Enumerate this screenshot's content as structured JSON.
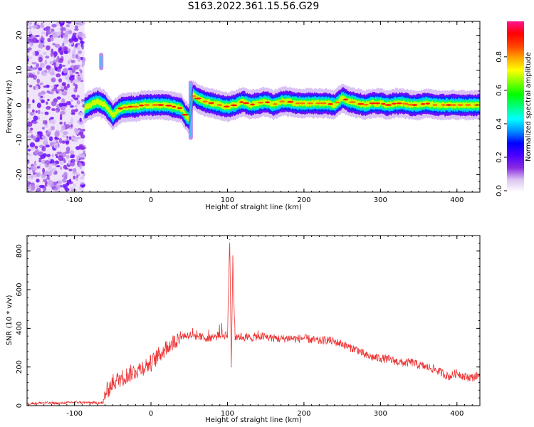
{
  "title": "S163.2022.361.15.56.G29",
  "chart_data": [
    {
      "type": "heatmap",
      "xlabel": "Height of straight line (km)",
      "ylabel": "Frequency (Hz)",
      "xlim": [
        -162,
        430
      ],
      "ylim": [
        -25,
        24
      ],
      "xticks": [
        -100,
        0,
        100,
        200,
        300,
        400
      ],
      "yticks": [
        -20,
        -10,
        0,
        10,
        20
      ],
      "colorbar": {
        "label": "Normalized spectral amplitude",
        "range": [
          0,
          1
        ],
        "ticks": [
          0.0,
          0.2,
          0.4,
          0.6,
          0.8
        ],
        "colors": [
          "#ffffff",
          "#ddc6f2",
          "#8a2be2",
          "#4b00ff",
          "#0000ff",
          "#0090ff",
          "#00ffff",
          "#00ff80",
          "#00ff00",
          "#80ff00",
          "#ffff00",
          "#ffa500",
          "#ff4000",
          "#ff0000",
          "#ff1493"
        ]
      },
      "noise_region_x": [
        -162,
        -87
      ],
      "ridge": {
        "x": [
          -87,
          -80,
          -70,
          -60,
          -50,
          -40,
          -30,
          -20,
          -10,
          0,
          10,
          20,
          30,
          40,
          45,
          50,
          55,
          60,
          70,
          80,
          90,
          100,
          110,
          120,
          130,
          140,
          150,
          160,
          170,
          180,
          190,
          200,
          210,
          220,
          230,
          240,
          250,
          260,
          270,
          280,
          290,
          300,
          310,
          320,
          330,
          340,
          350,
          360,
          370,
          380,
          390,
          400,
          410,
          420,
          430
        ],
        "freq": [
          -1,
          0,
          1,
          0,
          -3,
          -1,
          -0.5,
          -0.5,
          0,
          0,
          0,
          0,
          -0.5,
          -1,
          -3,
          -4,
          3,
          2,
          1,
          0.5,
          0,
          -0.5,
          0,
          1,
          0,
          0.5,
          1,
          0,
          1,
          1,
          0.5,
          0.5,
          0.5,
          0.5,
          0.5,
          0,
          2,
          1,
          0.5,
          0,
          0.5,
          0.5,
          0,
          0.5,
          0.5,
          0,
          0,
          0.5,
          0,
          0,
          0,
          0,
          0,
          0,
          0
        ]
      },
      "spikes": [
        {
          "x": 52,
          "freq_range": [
            -10,
            7
          ]
        },
        {
          "x": -65,
          "freq_range": [
            10,
            15
          ]
        }
      ]
    },
    {
      "type": "line",
      "xlabel": "Height of straight line (km)",
      "ylabel": "SNR (10 * v/v)",
      "xlim": [
        -162,
        430
      ],
      "ylim": [
        0,
        880
      ],
      "xticks": [
        -100,
        0,
        100,
        200,
        300,
        400
      ],
      "yticks": [
        0,
        200,
        400,
        600,
        800
      ],
      "color": "#ee3333",
      "series": [
        {
          "x": [
            -162,
            -140,
            -120,
            -100,
            -80,
            -62,
            -60,
            -55,
            -50,
            -45,
            -40,
            -30,
            -20,
            -10,
            0,
            10,
            20,
            30,
            40,
            50,
            60,
            70,
            80,
            90,
            100,
            103,
            105,
            107,
            110,
            115,
            120,
            130,
            140,
            150,
            160,
            170,
            180,
            190,
            200,
            210,
            220,
            230,
            240,
            250,
            260,
            270,
            280,
            290,
            300,
            310,
            320,
            330,
            340,
            350,
            360,
            370,
            380,
            390,
            400,
            410,
            420,
            430
          ],
          "values": [
            10,
            15,
            12,
            18,
            15,
            15,
            60,
            90,
            120,
            130,
            140,
            160,
            180,
            200,
            220,
            260,
            300,
            330,
            360,
            365,
            360,
            350,
            355,
            360,
            370,
            860,
            200,
            760,
            340,
            360,
            355,
            350,
            360,
            355,
            350,
            345,
            350,
            345,
            350,
            340,
            335,
            340,
            330,
            320,
            300,
            290,
            260,
            250,
            245,
            240,
            230,
            220,
            225,
            210,
            200,
            190,
            170,
            150,
            170,
            150,
            145,
            160
          ]
        }
      ],
      "grid": false
    }
  ]
}
